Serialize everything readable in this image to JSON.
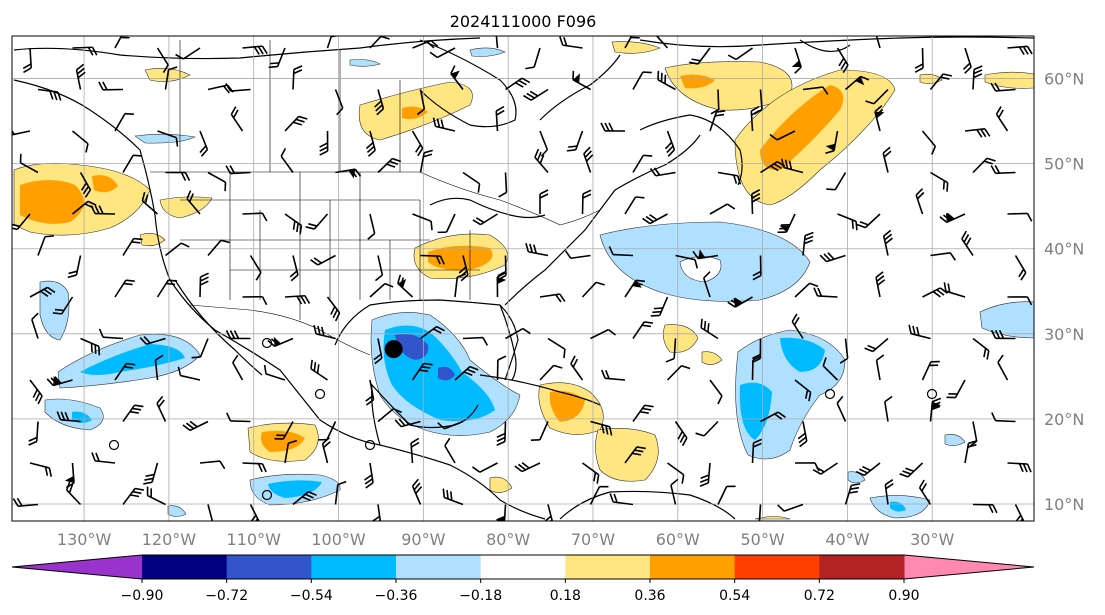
{
  "title": "2024111000 F096",
  "map": {
    "lat_labels": [
      "60°N",
      "50°N",
      "40°N",
      "30°N",
      "20°N",
      "10°N"
    ],
    "lon_labels": [
      "130°W",
      "120°W",
      "110°W",
      "100°W",
      "90°W",
      "80°W",
      "70°W",
      "60°W",
      "50°W",
      "40°W",
      "30°W"
    ],
    "extent": {
      "lon_min": -138.5,
      "lon_max": -18,
      "lat_min": 8,
      "lat_max": 65
    },
    "label_color": "#808080",
    "storm_marker_lonlat": [
      -93.5,
      28.2
    ]
  },
  "colorbar": {
    "tick_labels": [
      "−0.90",
      "−0.72",
      "−0.54",
      "−0.36",
      "−0.18",
      "0.18",
      "0.36",
      "0.54",
      "0.72",
      "0.90"
    ],
    "colors": [
      "#9933cc",
      "#000080",
      "#3355cc",
      "#00bbff",
      "#b0e0ff",
      "#ffffff",
      "#ffe680",
      "#ffa000",
      "#ff4000",
      "#b22222",
      "#ff88b0"
    ],
    "extend": "both"
  }
}
